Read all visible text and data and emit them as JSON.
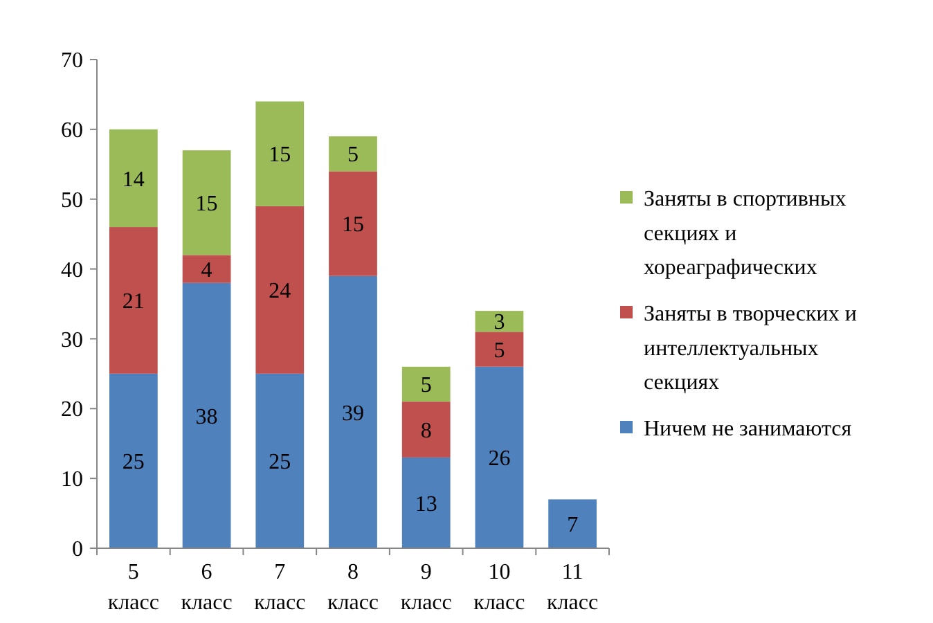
{
  "chart_data": {
    "type": "bar",
    "stacked": true,
    "categories": [
      "5 класс",
      "6 класс",
      "7 класс",
      "8 класс",
      "9 класс",
      "10 класс",
      "11 класс"
    ],
    "series": [
      {
        "name": "Ничем не занимаются",
        "color": "#4f81bd",
        "values": [
          25,
          38,
          25,
          39,
          13,
          26,
          7
        ]
      },
      {
        "name": "Заняты в творческих и интеллектуальных секциях",
        "color": "#c0504d",
        "values": [
          21,
          4,
          24,
          15,
          8,
          5,
          null
        ]
      },
      {
        "name": "Заняты в спортивных секциях и хореаграфических",
        "color": "#9bbb59",
        "values": [
          14,
          15,
          15,
          5,
          5,
          3,
          null
        ]
      }
    ],
    "ylim": [
      0,
      70
    ],
    "yticks": [
      0,
      10,
      20,
      30,
      40,
      50,
      60,
      70
    ],
    "data_labels": true,
    "legend": "right",
    "grid": false
  }
}
